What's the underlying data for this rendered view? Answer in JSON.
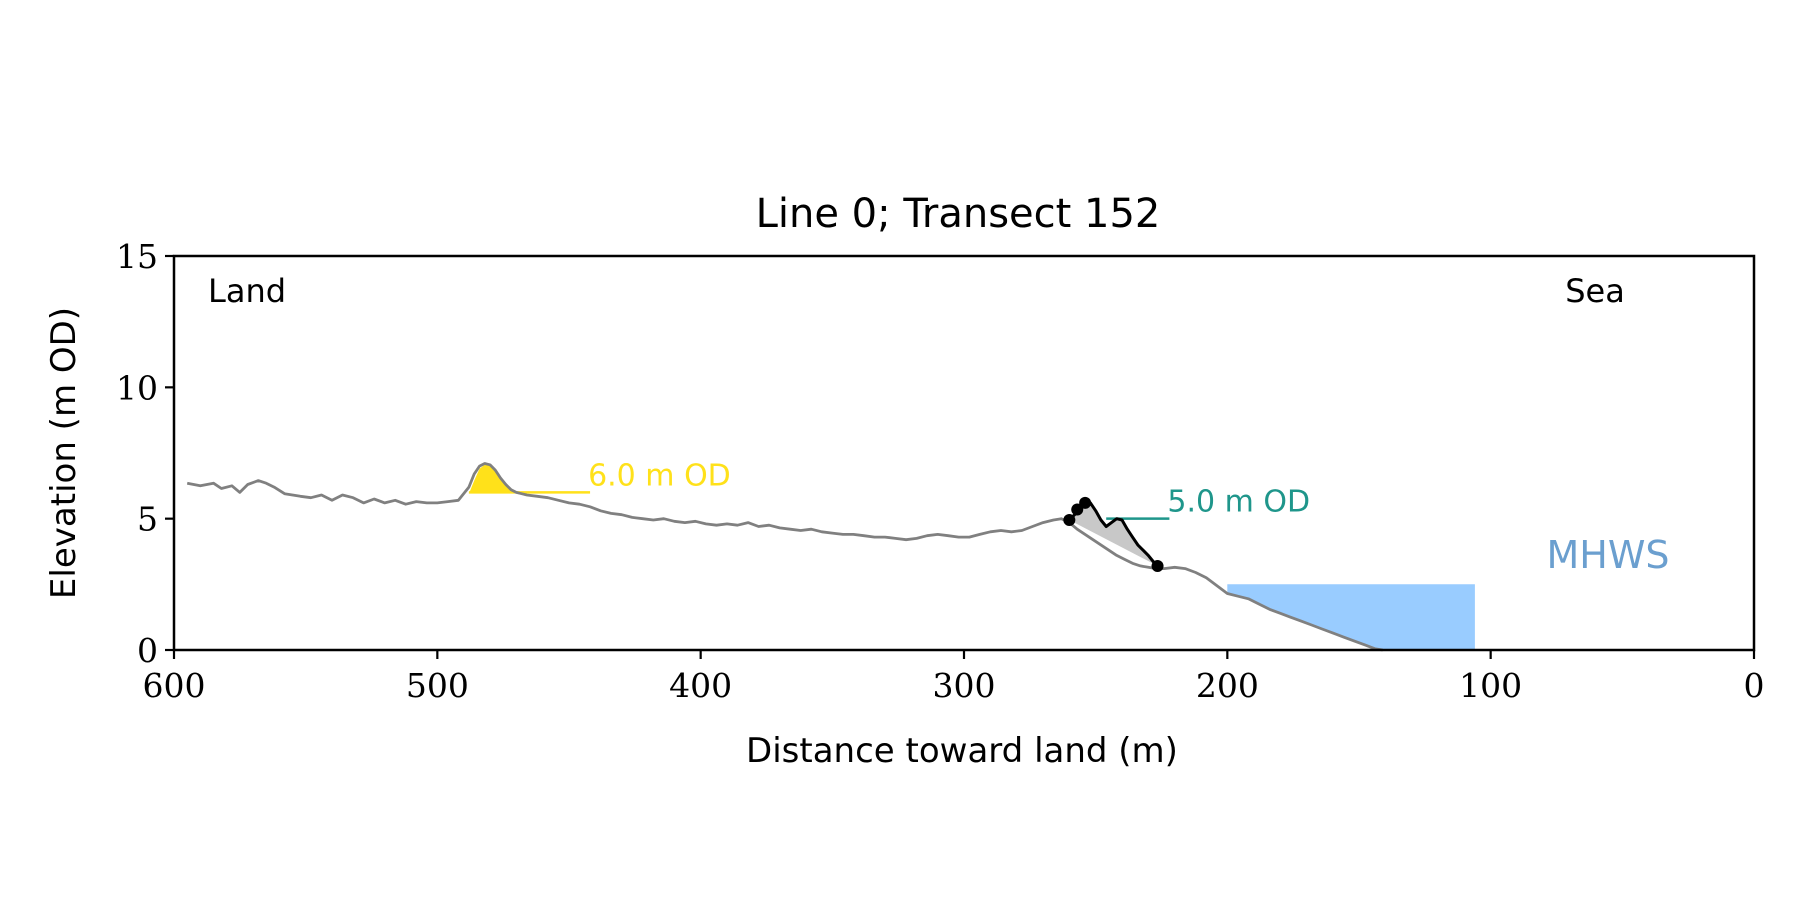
{
  "chart_data": {
    "type": "line",
    "title": "Line 0; Transect 152",
    "xlabel": "Distance toward land (m)",
    "ylabel": "Elevation (m OD)",
    "xlim": [
      600,
      0
    ],
    "ylim": [
      0,
      15
    ],
    "x_ticks": [
      600,
      500,
      400,
      300,
      200,
      100,
      0
    ],
    "y_ticks": [
      0,
      5,
      10,
      15
    ],
    "x_tick_labels": [
      "600",
      "500",
      "400",
      "300",
      "200",
      "100",
      "0"
    ],
    "y_tick_labels": [
      "0",
      "5",
      "10",
      "15"
    ],
    "grid": false,
    "corner_labels": {
      "left": "Land",
      "right": "Sea"
    },
    "profile": {
      "color": "#808080",
      "x": [
        595,
        590,
        585,
        582,
        578,
        575,
        572,
        568,
        565,
        562,
        558,
        555,
        552,
        548,
        544,
        540,
        536,
        532,
        528,
        524,
        520,
        516,
        512,
        508,
        504,
        500,
        496,
        492,
        488,
        486,
        484,
        482,
        480,
        478,
        476,
        474,
        472,
        470,
        468,
        466,
        462,
        458,
        454,
        450,
        446,
        442,
        438,
        434,
        430,
        426,
        422,
        418,
        414,
        410,
        406,
        402,
        398,
        394,
        390,
        386,
        382,
        378,
        374,
        370,
        366,
        362,
        358,
        354,
        350,
        346,
        342,
        338,
        334,
        330,
        326,
        322,
        318,
        314,
        310,
        306,
        302,
        298,
        294,
        290,
        286,
        282,
        278,
        274,
        270,
        266,
        263,
        260,
        257,
        254,
        251,
        248,
        245,
        242,
        239,
        236,
        233,
        230,
        227,
        224,
        220,
        216,
        212,
        208,
        204,
        200,
        196,
        192,
        188,
        184,
        180,
        176,
        172,
        168,
        164,
        160,
        156,
        152,
        148,
        144,
        141
      ],
      "y": [
        6.35,
        6.25,
        6.35,
        6.15,
        6.25,
        6.0,
        6.3,
        6.45,
        6.35,
        6.2,
        5.95,
        5.9,
        5.85,
        5.8,
        5.9,
        5.7,
        5.9,
        5.8,
        5.6,
        5.75,
        5.6,
        5.7,
        5.55,
        5.65,
        5.6,
        5.6,
        5.65,
        5.7,
        6.2,
        6.7,
        7.0,
        7.1,
        7.05,
        6.85,
        6.55,
        6.3,
        6.1,
        6.0,
        5.95,
        5.9,
        5.85,
        5.8,
        5.7,
        5.6,
        5.55,
        5.45,
        5.3,
        5.2,
        5.15,
        5.05,
        5.0,
        4.95,
        5.0,
        4.9,
        4.85,
        4.9,
        4.8,
        4.75,
        4.8,
        4.75,
        4.85,
        4.7,
        4.75,
        4.65,
        4.6,
        4.55,
        4.6,
        4.5,
        4.45,
        4.4,
        4.4,
        4.35,
        4.3,
        4.3,
        4.25,
        4.2,
        4.25,
        4.35,
        4.4,
        4.35,
        4.3,
        4.3,
        4.4,
        4.5,
        4.55,
        4.5,
        4.55,
        4.7,
        4.85,
        4.95,
        5.0,
        4.85,
        4.6,
        4.4,
        4.2,
        4.0,
        3.8,
        3.6,
        3.45,
        3.3,
        3.2,
        3.15,
        3.1,
        3.1,
        3.15,
        3.1,
        2.95,
        2.75,
        2.45,
        2.15,
        2.05,
        1.95,
        1.75,
        1.55,
        1.4,
        1.25,
        1.1,
        0.95,
        0.8,
        0.65,
        0.5,
        0.35,
        0.2,
        0.05,
        0.0
      ]
    },
    "dune": {
      "color": "#ffe11a",
      "x": [
        488,
        486,
        484,
        482,
        480,
        478,
        476,
        474,
        472,
        470
      ],
      "y": [
        5.95,
        6.45,
        6.9,
        7.05,
        7.05,
        6.85,
        6.55,
        6.3,
        6.1,
        6.0
      ],
      "base": 6.0
    },
    "cliff": {
      "line_color": "#000000",
      "fill_color": "#c8c8c8",
      "x": [
        260,
        258,
        256,
        254,
        252,
        250,
        248,
        246,
        244,
        242,
        240,
        238,
        236,
        234,
        232,
        230,
        228,
        226.5
      ],
      "y": [
        4.95,
        5.15,
        5.35,
        5.55,
        5.6,
        5.3,
        4.95,
        4.7,
        4.85,
        5.0,
        4.95,
        4.6,
        4.3,
        4.0,
        3.8,
        3.6,
        3.35,
        3.2
      ],
      "markers": [
        [
          260,
          4.95
        ],
        [
          257,
          5.35
        ],
        [
          254,
          5.6
        ],
        [
          226.5,
          3.2
        ]
      ]
    },
    "levels": [
      {
        "label": "6.0 m OD",
        "value": 6.0,
        "x_from": 488,
        "x_to": 442,
        "color": "#ffe11a"
      },
      {
        "label": "5.0 m OD",
        "value": 5.0,
        "x_from": 246,
        "x_to": 222,
        "color": "#1f968b"
      }
    ],
    "mhws": {
      "label": "MHWS",
      "value": 2.5,
      "x_from": 200,
      "x_to": 106,
      "fill_color": "#99ccff",
      "label_color": "#6b9fcf"
    }
  }
}
